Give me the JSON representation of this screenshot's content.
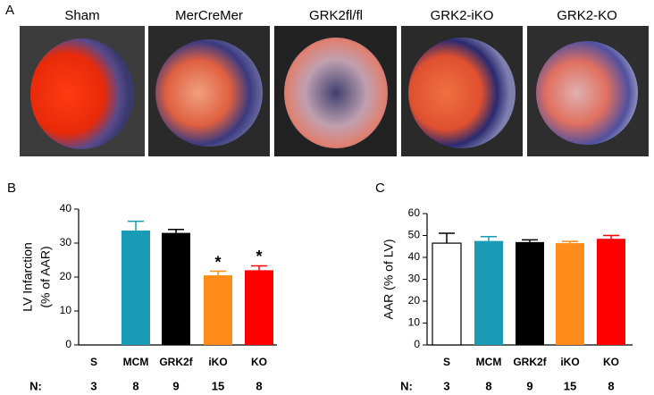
{
  "panel_a": {
    "label": "A",
    "images": [
      "Sham",
      "MerCreMer",
      "GRK2fl/fl",
      "GRK2-iKO",
      "GRK2-KO"
    ]
  },
  "chart_data": [
    {
      "type": "bar",
      "panel": "B",
      "ylabel": [
        "LV Infarction",
        "(% of AAR)"
      ],
      "categories": [
        "S",
        "MCM",
        "GRK2f",
        "iKO",
        "KO"
      ],
      "values": [
        0,
        33.7,
        33,
        20.5,
        22
      ],
      "errors": [
        0,
        2.7,
        1,
        1.2,
        1.3
      ],
      "colors": [
        "#ffffff",
        "#1a9bb5",
        "#000000",
        "#ff8c1a",
        "#ff0000"
      ],
      "significance": [
        null,
        null,
        null,
        "*",
        "*"
      ],
      "n_label": "N:",
      "n": [
        "3",
        "8",
        "9",
        "15",
        "8"
      ],
      "ylim": [
        0,
        40
      ],
      "yticks": [
        0,
        10,
        20,
        30,
        40
      ]
    },
    {
      "type": "bar",
      "panel": "C",
      "ylabel": [
        "AAR (% of LV)"
      ],
      "categories": [
        "S",
        "MCM",
        "GRK2f",
        "iKO",
        "KO"
      ],
      "values": [
        46.5,
        47.5,
        47,
        46.5,
        48.5
      ],
      "errors": [
        4.5,
        2,
        1,
        0.8,
        1.5
      ],
      "colors": [
        "#ffffff",
        "#1a9bb5",
        "#000000",
        "#ff8c1a",
        "#ff0000"
      ],
      "significance": [
        null,
        null,
        null,
        null,
        null
      ],
      "n_label": "N:",
      "n": [
        "3",
        "8",
        "9",
        "15",
        "8"
      ],
      "ylim": [
        0,
        60
      ],
      "yticks": [
        0,
        10,
        20,
        30,
        40,
        50,
        60
      ]
    }
  ]
}
